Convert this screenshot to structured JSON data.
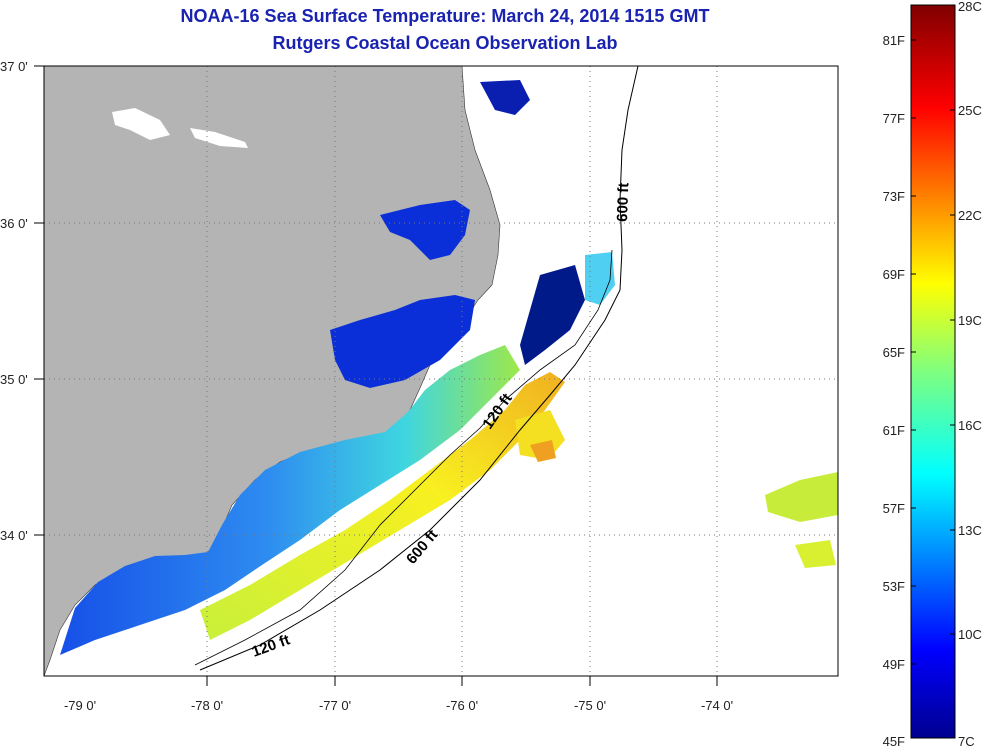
{
  "header": {
    "title": "NOAA-16 Sea Surface Temperature:  March 24, 2014 1515 GMT",
    "subtitle": "Rutgers Coastal Ocean Observation Lab"
  },
  "map": {
    "longitude_labels": [
      "-79 0'",
      "-78 0'",
      "-77 0'",
      "-76 0'",
      "-75 0'",
      "-74 0'"
    ],
    "latitude_labels": [
      "37 0'",
      "36 0'",
      "35 0'",
      "34 0'"
    ],
    "depth_labels": [
      "600 ft",
      "120 ft",
      "600 ft",
      "120 ft"
    ],
    "land_color": "#b4b4b4",
    "water_no_data_color": "#ffffff"
  },
  "colorbar": {
    "fahrenheit_labels": [
      "81F",
      "77F",
      "73F",
      "69F",
      "65F",
      "61F",
      "57F",
      "53F",
      "49F",
      "45F"
    ],
    "celsius_labels": [
      "28C",
      "25C",
      "22C",
      "19C",
      "16C",
      "13C",
      "10C",
      "7C"
    ]
  }
}
